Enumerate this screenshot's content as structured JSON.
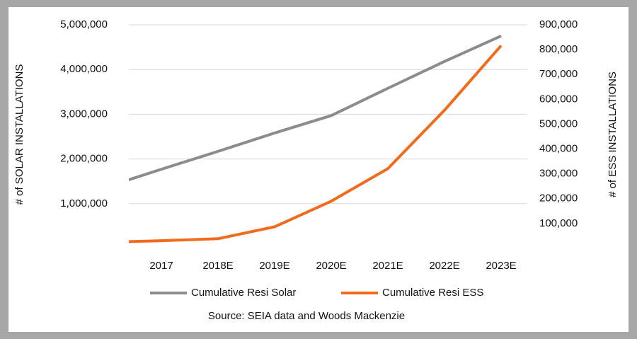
{
  "chart_data": {
    "type": "line",
    "y_label": "# of SOLAR INSTALLATIONS",
    "y2_label": "# of ESS INSTALLATIONS",
    "source": "Source: SEIA data and Woods Mackenzie",
    "categories": [
      null,
      "2017",
      "2018E",
      "2019E",
      "2020E",
      "2021E",
      "2022E",
      "2023E"
    ],
    "series": [
      {
        "name": "Cumulative Resi Solar",
        "color": "#8c8c8c",
        "values": [
          1360000,
          1770000,
          2170000,
          2580000,
          2970000,
          3580000,
          4180000,
          4750000
        ]
      },
      {
        "name": "Cumulative Resi ESS",
        "color": "#f26b1d",
        "axis": "y2",
        "values": [
          25000,
          31000,
          39000,
          87000,
          190000,
          321000,
          556000,
          816000
        ]
      }
    ],
    "ylim": [
      0,
      5000000
    ],
    "yticks": [
      {
        "value": 1000000,
        "label": "1,000,000"
      },
      {
        "value": 2000000,
        "label": "2,000,000"
      },
      {
        "value": 3000000,
        "label": "3,000,000"
      },
      {
        "value": 4000000,
        "label": "4,000,000"
      },
      {
        "value": 5000000,
        "label": "5,000,000"
      }
    ],
    "y2lim": [
      0,
      900000
    ],
    "y2ticks": [
      {
        "value": 100000,
        "label": "100,000"
      },
      {
        "value": 200000,
        "label": "200,000"
      },
      {
        "value": 300000,
        "label": "300,000"
      },
      {
        "value": 400000,
        "label": "400,000"
      },
      {
        "value": 500000,
        "label": "500,000"
      },
      {
        "value": 600000,
        "label": "600,000"
      },
      {
        "value": 700000,
        "label": "700,000"
      },
      {
        "value": 800000,
        "label": "800,000"
      },
      {
        "value": 900000,
        "label": "900,000"
      }
    ],
    "grid": true
  }
}
